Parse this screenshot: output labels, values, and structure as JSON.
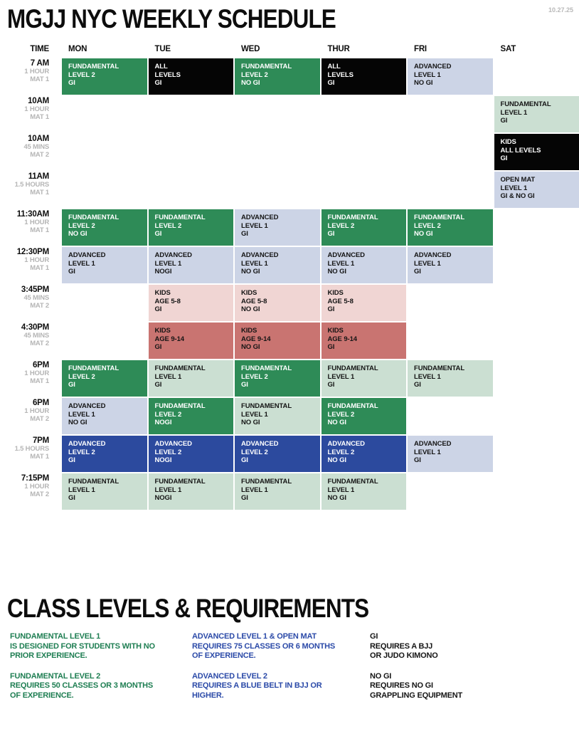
{
  "header": {
    "title": "MGJJ NYC WEEKLY SCHEDULE",
    "date": "10.27.25"
  },
  "colors": {
    "green": {
      "bg": "#2e8b57",
      "fg": "#ffffff"
    },
    "black": {
      "bg": "#050505",
      "fg": "#ffffff"
    },
    "lavender": {
      "bg": "#ccd4e6",
      "fg": "#151515"
    },
    "lightgreen": {
      "bg": "#cbdfd2",
      "fg": "#151515"
    },
    "pink": {
      "bg": "#f0d5d3",
      "fg": "#151515"
    },
    "red": {
      "bg": "#c97471",
      "fg": "#151515"
    },
    "blue": {
      "bg": "#2c4a9e",
      "fg": "#ffffff"
    }
  },
  "schedule": {
    "columns": [
      "TIME",
      "MON",
      "TUE",
      "WED",
      "THUR",
      "FRI",
      "SAT"
    ],
    "rows": [
      {
        "time": "7 AM",
        "duration": "1 HOUR",
        "mat": "MAT 1",
        "cells": [
          {
            "day": "MON",
            "lines": [
              "FUNDAMENTAL",
              "LEVEL 2",
              "GI"
            ],
            "style": "green"
          },
          {
            "day": "TUE",
            "lines": [
              "ALL",
              "LEVELS",
              "GI"
            ],
            "style": "black"
          },
          {
            "day": "WED",
            "lines": [
              "FUNDAMENTAL",
              "LEVEL 2",
              "NO GI"
            ],
            "style": "green"
          },
          {
            "day": "THUR",
            "lines": [
              "ALL",
              "LEVELS",
              "GI"
            ],
            "style": "black"
          },
          {
            "day": "FRI",
            "lines": [
              "ADVANCED",
              "LEVEL 1",
              "NO GI"
            ],
            "style": "lavender"
          }
        ]
      },
      {
        "time": "10AM",
        "duration": "1 HOUR",
        "mat": "MAT 1",
        "cells": [
          {
            "day": "SAT",
            "lines": [
              "FUNDAMENTAL",
              "LEVEL 1",
              "GI"
            ],
            "style": "lightgreen"
          }
        ]
      },
      {
        "time": "10AM",
        "duration": "45 MINS",
        "mat": "MAT 2",
        "cells": [
          {
            "day": "SAT",
            "lines": [
              "KIDS",
              "ALL LEVELS",
              "GI"
            ],
            "style": "black"
          }
        ]
      },
      {
        "time": "11AM",
        "duration": "1.5 HOURS",
        "mat": "MAT 1",
        "cells": [
          {
            "day": "SAT",
            "lines": [
              "OPEN MAT",
              "LEVEL 1",
              "GI & NO GI"
            ],
            "style": "lavender"
          }
        ]
      },
      {
        "time": "11:30AM",
        "duration": "1 HOUR",
        "mat": "MAT 1",
        "cells": [
          {
            "day": "MON",
            "lines": [
              "FUNDAMENTAL",
              "LEVEL 2",
              "NO GI"
            ],
            "style": "green"
          },
          {
            "day": "TUE",
            "lines": [
              "FUNDAMENTAL",
              "LEVEL 2",
              "GI"
            ],
            "style": "green"
          },
          {
            "day": "WED",
            "lines": [
              "ADVANCED",
              "LEVEL 1",
              "GI"
            ],
            "style": "lavender"
          },
          {
            "day": "THUR",
            "lines": [
              "FUNDAMENTAL",
              "LEVEL 2",
              "GI"
            ],
            "style": "green"
          },
          {
            "day": "FRI",
            "lines": [
              "FUNDAMENTAL",
              "LEVEL 2",
              "NO GI"
            ],
            "style": "green"
          }
        ]
      },
      {
        "time": "12:30PM",
        "duration": "1 HOUR",
        "mat": "MAT 1",
        "cells": [
          {
            "day": "MON",
            "lines": [
              "ADVANCED",
              "LEVEL 1",
              "GI"
            ],
            "style": "lavender"
          },
          {
            "day": "TUE",
            "lines": [
              "ADVANCED",
              "LEVEL 1",
              "NOGI"
            ],
            "style": "lavender"
          },
          {
            "day": "WED",
            "lines": [
              "ADVANCED",
              "LEVEL 1",
              "NO GI"
            ],
            "style": "lavender"
          },
          {
            "day": "THUR",
            "lines": [
              "ADVANCED",
              "LEVEL 1",
              "NO GI"
            ],
            "style": "lavender"
          },
          {
            "day": "FRI",
            "lines": [
              "ADVANCED",
              "LEVEL 1",
              "GI"
            ],
            "style": "lavender"
          }
        ]
      },
      {
        "time": "3:45PM",
        "duration": "45 MINS",
        "mat": "MAT 2",
        "cells": [
          {
            "day": "TUE",
            "lines": [
              "KIDS",
              "AGE 5-8",
              "GI"
            ],
            "style": "pink"
          },
          {
            "day": "WED",
            "lines": [
              "KIDS",
              "AGE 5-8",
              "NO GI"
            ],
            "style": "pink"
          },
          {
            "day": "THUR",
            "lines": [
              "KIDS",
              "AGE 5-8",
              "GI"
            ],
            "style": "pink"
          }
        ]
      },
      {
        "time": "4:30PM",
        "duration": "45 MINS",
        "mat": "MAT 2",
        "cells": [
          {
            "day": "TUE",
            "lines": [
              "KIDS",
              "AGE 9-14",
              "GI"
            ],
            "style": "red"
          },
          {
            "day": "WED",
            "lines": [
              "KIDS",
              "AGE 9-14",
              "NO GI"
            ],
            "style": "red"
          },
          {
            "day": "THUR",
            "lines": [
              "KIDS",
              "AGE 9-14",
              "GI"
            ],
            "style": "red"
          }
        ]
      },
      {
        "time": "6PM",
        "duration": "1 HOUR",
        "mat": "MAT 1",
        "cells": [
          {
            "day": "MON",
            "lines": [
              "FUNDAMENTAL",
              "LEVEL 2",
              "GI"
            ],
            "style": "green"
          },
          {
            "day": "TUE",
            "lines": [
              "FUNDAMENTAL",
              "LEVEL 1",
              "GI"
            ],
            "style": "lightgreen"
          },
          {
            "day": "WED",
            "lines": [
              "FUNDAMENTAL",
              "LEVEL 2",
              "GI"
            ],
            "style": "green"
          },
          {
            "day": "THUR",
            "lines": [
              "FUNDAMENTAL",
              "LEVEL 1",
              "GI"
            ],
            "style": "lightgreen"
          },
          {
            "day": "FRI",
            "lines": [
              "FUNDAMENTAL",
              "LEVEL 1",
              "GI"
            ],
            "style": "lightgreen"
          }
        ]
      },
      {
        "time": "6PM",
        "duration": "1 HOUR",
        "mat": "MAT 2",
        "cells": [
          {
            "day": "MON",
            "lines": [
              "ADVANCED",
              "LEVEL 1",
              "NO GI"
            ],
            "style": "lavender"
          },
          {
            "day": "TUE",
            "lines": [
              "FUNDAMENTAL",
              "LEVEL 2",
              "NOGI"
            ],
            "style": "green"
          },
          {
            "day": "WED",
            "lines": [
              "FUNDAMENTAL",
              "LEVEL 1",
              "NO GI"
            ],
            "style": "lightgreen"
          },
          {
            "day": "THUR",
            "lines": [
              "FUNDAMENTAL",
              "LEVEL 2",
              "NO GI"
            ],
            "style": "green"
          }
        ]
      },
      {
        "time": "7PM",
        "duration": "1.5 HOURS",
        "mat": "MAT 1",
        "cells": [
          {
            "day": "MON",
            "lines": [
              "ADVANCED",
              "LEVEL 2",
              "GI"
            ],
            "style": "blue"
          },
          {
            "day": "TUE",
            "lines": [
              "ADVANCED",
              "LEVEL 2",
              "NOGI"
            ],
            "style": "blue"
          },
          {
            "day": "WED",
            "lines": [
              "ADVANCED",
              "LEVEL 2",
              "GI"
            ],
            "style": "blue"
          },
          {
            "day": "THUR",
            "lines": [
              "ADVANCED",
              "LEVEL 2",
              "NO GI"
            ],
            "style": "blue"
          },
          {
            "day": "FRI",
            "lines": [
              "ADVANCED",
              "LEVEL 1",
              "GI"
            ],
            "style": "lavender"
          }
        ]
      },
      {
        "time": "7:15PM",
        "duration": "1 HOUR",
        "mat": "MAT 2",
        "cells": [
          {
            "day": "MON",
            "lines": [
              "FUNDAMENTAL",
              "LEVEL 1",
              "GI"
            ],
            "style": "lightgreen"
          },
          {
            "day": "TUE",
            "lines": [
              "FUNDAMENTAL",
              "LEVEL 1",
              "NOGI"
            ],
            "style": "lightgreen"
          },
          {
            "day": "WED",
            "lines": [
              "FUNDAMENTAL",
              "LEVEL 1",
              "GI"
            ],
            "style": "lightgreen"
          },
          {
            "day": "THUR",
            "lines": [
              "FUNDAMENTAL",
              "LEVEL 1",
              "NO GI"
            ],
            "style": "lightgreen"
          }
        ]
      }
    ]
  },
  "legend": {
    "title": "CLASS LEVELS & REQUIREMENTS",
    "columns": [
      {
        "color": "#1e7e52",
        "paragraphs": [
          [
            "FUNDAMENTAL LEVEL 1",
            "IS DESIGNED FOR STUDENTS WITH NO",
            "PRIOR EXPERIENCE."
          ],
          [
            "FUNDAMENTAL LEVEL 2",
            "REQUIRES 50 CLASSES OR 3 MONTHS",
            "OF EXPERIENCE."
          ]
        ]
      },
      {
        "color": "#2b4aa8",
        "paragraphs": [
          [
            "ADVANCED LEVEL 1 & OPEN MAT",
            "REQUIRES 75 CLASSES OR 6 MONTHS",
            "OF EXPERIENCE."
          ],
          [
            "ADVANCED LEVEL 2",
            "REQUIRES A BLUE BELT IN BJJ OR",
            "HIGHER."
          ]
        ]
      },
      {
        "color": "#151515",
        "paragraphs": [
          [
            "GI",
            "REQUIRES A BJJ",
            "OR JUDO KIMONO"
          ],
          [
            "NO GI",
            "REQUIRES NO GI",
            "GRAPPLING EQUIPMENT"
          ]
        ]
      }
    ]
  }
}
